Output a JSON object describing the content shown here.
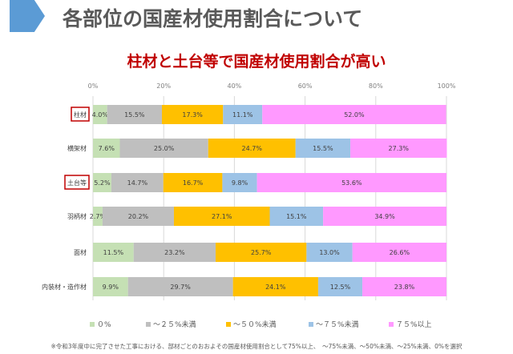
{
  "header": {
    "title": "各部位の国産材使用割合について",
    "subtitle": "柱材と土台等で国産材使用割合が高い"
  },
  "chart_data": {
    "type": "bar",
    "orientation": "horizontal",
    "stacked": true,
    "categories": [
      "柱材",
      "横架材",
      "土台等",
      "羽柄材",
      "面材",
      "内装材・造作材"
    ],
    "highlighted": [
      "柱材",
      "土台等"
    ],
    "xticks": [
      "0%",
      "20%",
      "40%",
      "60%",
      "80%",
      "100%"
    ],
    "xlim": [
      0,
      100
    ],
    "series": [
      {
        "name": "０%",
        "color": "#c5e0b4",
        "values": [
          4.0,
          7.6,
          5.2,
          2.7,
          11.5,
          9.9
        ]
      },
      {
        "name": "～２５%未満",
        "color": "#bfbfbf",
        "values": [
          15.5,
          25.0,
          14.7,
          20.2,
          23.2,
          29.7
        ]
      },
      {
        "name": "～５０%未満",
        "color": "#ffc000",
        "values": [
          17.3,
          24.7,
          16.7,
          27.1,
          25.7,
          24.1
        ]
      },
      {
        "name": "～７５%未満",
        "color": "#9dc3e6",
        "values": [
          11.1,
          15.5,
          9.8,
          15.1,
          13.0,
          12.5
        ]
      },
      {
        "name": "７５%以上",
        "color": "#ff99ff",
        "values": [
          52.0,
          27.3,
          53.6,
          34.9,
          26.6,
          23.8
        ]
      }
    ]
  },
  "footnote": "※令和3年度中に完了させた工事における、部材ごとのおおよその国産材使用割合として75%以上、　～75%未満、～50%未満、～25%未満、0%を選択"
}
